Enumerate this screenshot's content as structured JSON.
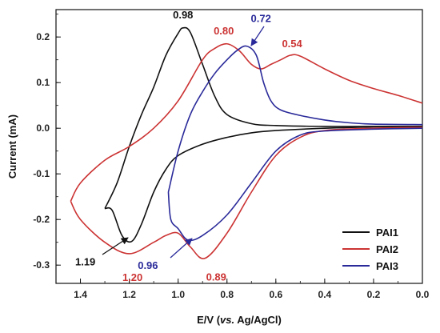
{
  "chart_data": {
    "type": "line",
    "title": "",
    "xlabel_prefix": "E/V (",
    "xlabel_italic": "vs.",
    "xlabel_suffix": " Ag/AgCl)",
    "ylabel": "Current (mA)",
    "xlim": [
      1.5,
      0.0
    ],
    "ylim": [
      -0.34,
      0.26
    ],
    "x_reversed": true,
    "x_ticks": [
      1.4,
      1.2,
      1.0,
      0.8,
      0.6,
      0.4,
      0.2,
      0.0
    ],
    "x_tick_labels": [
      "1.4",
      "1.2",
      "1.0",
      "0.8",
      "0.6",
      "0.4",
      "0.2",
      "0.0"
    ],
    "y_ticks": [
      0.2,
      0.1,
      0.0,
      -0.1,
      -0.2,
      -0.3
    ],
    "y_tick_labels": [
      "0.2",
      "0.1",
      "0.0",
      "-0.1",
      "-0.2",
      "-0.3"
    ],
    "grid": false,
    "legend_position": "bottom-right",
    "series": [
      {
        "name": "PAI1",
        "color": "#111111",
        "forward": [
          [
            1.3,
            -0.176
          ],
          [
            1.25,
            -0.12
          ],
          [
            1.2,
            -0.04
          ],
          [
            1.15,
            0.03
          ],
          [
            1.1,
            0.09
          ],
          [
            1.05,
            0.16
          ],
          [
            1.0,
            0.208
          ],
          [
            0.98,
            0.22
          ],
          [
            0.95,
            0.21
          ],
          [
            0.9,
            0.14
          ],
          [
            0.85,
            0.07
          ],
          [
            0.8,
            0.03
          ],
          [
            0.7,
            0.01
          ],
          [
            0.6,
            0.006
          ],
          [
            0.4,
            0.004
          ],
          [
            0.2,
            0.004
          ],
          [
            0.0,
            0.004
          ]
        ],
        "reverse": [
          [
            0.0,
            0.004
          ],
          [
            0.2,
            0.003
          ],
          [
            0.4,
            0.0
          ],
          [
            0.6,
            -0.005
          ],
          [
            0.7,
            -0.01
          ],
          [
            0.8,
            -0.02
          ],
          [
            0.9,
            -0.035
          ],
          [
            1.0,
            -0.06
          ],
          [
            1.05,
            -0.09
          ],
          [
            1.1,
            -0.14
          ],
          [
            1.15,
            -0.21
          ],
          [
            1.19,
            -0.248
          ],
          [
            1.23,
            -0.235
          ],
          [
            1.27,
            -0.18
          ],
          [
            1.3,
            -0.176
          ]
        ]
      },
      {
        "name": "PAI2",
        "color": "#cc3333",
        "forward": [
          [
            1.44,
            -0.16
          ],
          [
            1.4,
            -0.12
          ],
          [
            1.3,
            -0.07
          ],
          [
            1.2,
            -0.04
          ],
          [
            1.1,
            0.0
          ],
          [
            1.0,
            0.06
          ],
          [
            0.9,
            0.15
          ],
          [
            0.85,
            0.175
          ],
          [
            0.8,
            0.185
          ],
          [
            0.75,
            0.17
          ],
          [
            0.7,
            0.14
          ],
          [
            0.66,
            0.13
          ],
          [
            0.62,
            0.14
          ],
          [
            0.58,
            0.15
          ],
          [
            0.54,
            0.16
          ],
          [
            0.5,
            0.158
          ],
          [
            0.4,
            0.13
          ],
          [
            0.3,
            0.105
          ],
          [
            0.2,
            0.087
          ],
          [
            0.1,
            0.072
          ],
          [
            0.0,
            0.055
          ]
        ],
        "reverse": [
          [
            0.0,
            0.002
          ],
          [
            0.2,
            0.0
          ],
          [
            0.4,
            -0.005
          ],
          [
            0.5,
            -0.02
          ],
          [
            0.6,
            -0.06
          ],
          [
            0.7,
            -0.14
          ],
          [
            0.8,
            -0.23
          ],
          [
            0.89,
            -0.285
          ],
          [
            0.95,
            -0.26
          ],
          [
            1.0,
            -0.23
          ],
          [
            1.05,
            -0.235
          ],
          [
            1.1,
            -0.25
          ],
          [
            1.2,
            -0.275
          ],
          [
            1.3,
            -0.25
          ],
          [
            1.4,
            -0.2
          ],
          [
            1.44,
            -0.16
          ]
        ]
      },
      {
        "name": "PAI3",
        "color": "#2a2a9a",
        "forward": [
          [
            1.04,
            -0.14
          ],
          [
            1.0,
            -0.05
          ],
          [
            0.95,
            0.03
          ],
          [
            0.9,
            0.08
          ],
          [
            0.85,
            0.12
          ],
          [
            0.8,
            0.15
          ],
          [
            0.76,
            0.17
          ],
          [
            0.72,
            0.18
          ],
          [
            0.68,
            0.16
          ],
          [
            0.65,
            0.1
          ],
          [
            0.62,
            0.06
          ],
          [
            0.58,
            0.04
          ],
          [
            0.5,
            0.028
          ],
          [
            0.4,
            0.018
          ],
          [
            0.3,
            0.012
          ],
          [
            0.2,
            0.009
          ],
          [
            0.0,
            0.008
          ]
        ],
        "reverse": [
          [
            0.0,
            0.0
          ],
          [
            0.2,
            -0.002
          ],
          [
            0.4,
            -0.006
          ],
          [
            0.5,
            -0.015
          ],
          [
            0.6,
            -0.05
          ],
          [
            0.7,
            -0.12
          ],
          [
            0.8,
            -0.19
          ],
          [
            0.9,
            -0.235
          ],
          [
            0.96,
            -0.245
          ],
          [
            1.0,
            -0.22
          ],
          [
            1.03,
            -0.2
          ],
          [
            1.04,
            -0.14
          ]
        ]
      }
    ],
    "annotations": [
      {
        "text": "0.98",
        "color": "#111111",
        "x": 0.98,
        "y": 0.22
      },
      {
        "text": "0.80",
        "color": "#cc3333",
        "x": 0.8,
        "y": 0.185
      },
      {
        "text": "0.72",
        "color": "#2a2a9a",
        "x": 0.72,
        "y": 0.18
      },
      {
        "text": "0.54",
        "color": "#cc3333",
        "x": 0.54,
        "y": 0.16
      },
      {
        "text": "1.19",
        "color": "#111111",
        "x": 1.19,
        "y": -0.248
      },
      {
        "text": "1.20",
        "color": "#cc3333",
        "x": 1.2,
        "y": -0.275
      },
      {
        "text": "0.96",
        "color": "#2a2a9a",
        "x": 0.96,
        "y": -0.245
      },
      {
        "text": "0.89",
        "color": "#cc3333",
        "x": 0.89,
        "y": -0.285
      }
    ]
  }
}
